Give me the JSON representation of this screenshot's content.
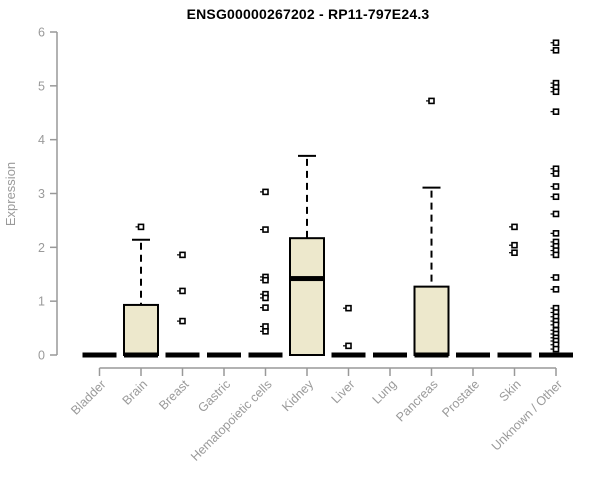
{
  "title": "ENSG00000267202 - RP11-797E24.3",
  "chart_data": {
    "type": "boxplot",
    "title": "ENSG00000267202 - RP11-797E24.3",
    "xlabel": "",
    "ylabel": "Expression",
    "ylim": [
      0,
      6
    ],
    "yticks": [
      0,
      1,
      2,
      3,
      4,
      5,
      6
    ],
    "grid": false,
    "legend": "none",
    "categories": [
      "Bladder",
      "Brain",
      "Breast",
      "Gastric",
      "Hematopoietic cells",
      "Kidney",
      "Liver",
      "Lung",
      "Pancreas",
      "Prostate",
      "Skin",
      "Unknown / Other"
    ],
    "boxes": [
      {
        "name": "Bladder",
        "q1": 0,
        "median": 0,
        "q3": 0,
        "whisker_low": 0,
        "whisker_high": 0,
        "outliers": []
      },
      {
        "name": "Brain",
        "q1": 0,
        "median": 0,
        "q3": 0.93,
        "whisker_low": 0,
        "whisker_high": 2.14,
        "outliers": [
          2.38
        ]
      },
      {
        "name": "Breast",
        "q1": 0,
        "median": 0,
        "q3": 0,
        "whisker_low": 0,
        "whisker_high": 0,
        "outliers": [
          1.86,
          1.19,
          0.63
        ]
      },
      {
        "name": "Gastric",
        "q1": 0,
        "median": 0,
        "q3": 0,
        "whisker_low": 0,
        "whisker_high": 0,
        "outliers": []
      },
      {
        "name": "Hematopoietic cells",
        "q1": 0,
        "median": 0,
        "q3": 0,
        "whisker_low": 0,
        "whisker_high": 0,
        "outliers": [
          3.03,
          2.33,
          1.45,
          1.39,
          1.13,
          1.06,
          0.88,
          0.53,
          0.44
        ]
      },
      {
        "name": "Kidney",
        "q1": 0,
        "median": 1.42,
        "q3": 2.17,
        "whisker_low": 0,
        "whisker_high": 3.7,
        "outliers": []
      },
      {
        "name": "Liver",
        "q1": 0,
        "median": 0,
        "q3": 0,
        "whisker_low": 0,
        "whisker_high": 0,
        "outliers": [
          0.87,
          0.17
        ]
      },
      {
        "name": "Lung",
        "q1": 0,
        "median": 0,
        "q3": 0,
        "whisker_low": 0,
        "whisker_high": 0,
        "outliers": []
      },
      {
        "name": "Pancreas",
        "q1": 0,
        "median": 0,
        "q3": 1.27,
        "whisker_low": 0,
        "whisker_high": 3.11,
        "outliers": [
          4.72
        ]
      },
      {
        "name": "Prostate",
        "q1": 0,
        "median": 0,
        "q3": 0,
        "whisker_low": 0,
        "whisker_high": 0,
        "outliers": []
      },
      {
        "name": "Skin",
        "q1": 0,
        "median": 0,
        "q3": 0,
        "whisker_low": 0,
        "whisker_high": 0,
        "outliers": [
          2.38,
          2.04,
          1.9
        ]
      },
      {
        "name": "Unknown / Other",
        "q1": 0,
        "median": 0,
        "q3": 0,
        "whisker_low": 0,
        "whisker_high": 0,
        "outliers": [
          5.8,
          5.66,
          5.05,
          4.97,
          4.89,
          4.52,
          3.46,
          3.37,
          3.13,
          2.94,
          2.62,
          2.26,
          2.1,
          2.02,
          1.94,
          1.86,
          1.44,
          1.22,
          0.87,
          0.79,
          0.71,
          0.63,
          0.56,
          0.46,
          0.39,
          0.32,
          0.26,
          0.19,
          0.11
        ]
      }
    ],
    "colors": {
      "box_fill": "#ede8cc",
      "box_stroke": "#000000",
      "median": "#000000",
      "whisker": "#000000",
      "outlier_stroke": "#000000",
      "outlier_fill": "#ffffff",
      "axis": "#999999",
      "tick_text": "#9a9a9a",
      "title_text": "#000000"
    }
  }
}
